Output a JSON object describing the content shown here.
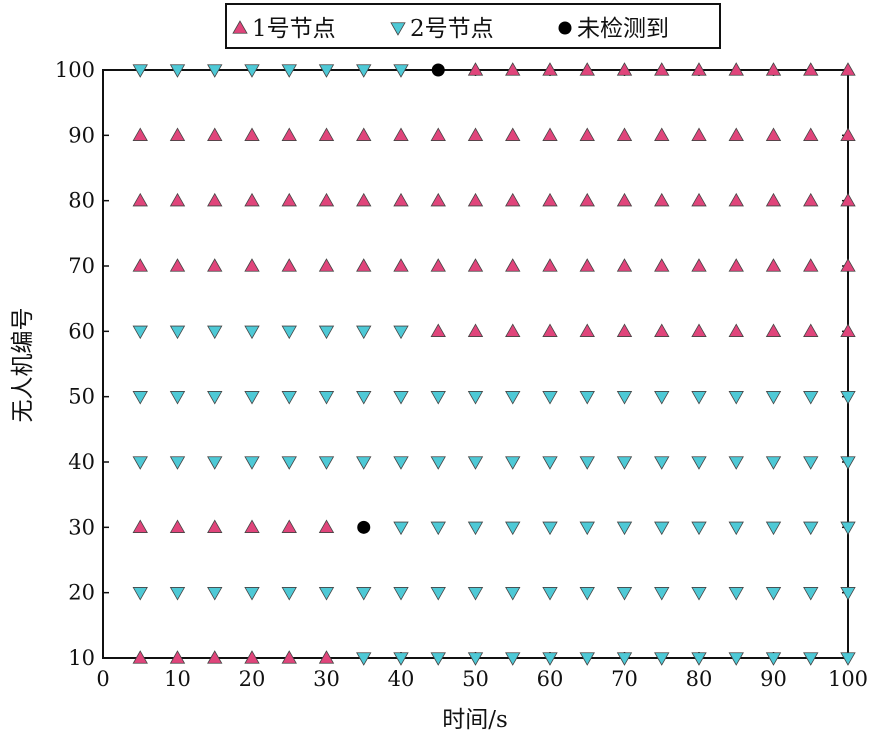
{
  "chart_data": {
    "type": "scatter",
    "title": "",
    "xlabel": "时间/s",
    "ylabel": "无人机编号",
    "xlim": [
      0,
      100
    ],
    "ylim": [
      10,
      100
    ],
    "xticks": [
      0,
      10,
      20,
      30,
      40,
      50,
      60,
      70,
      80,
      90,
      100
    ],
    "yticks": [
      10,
      20,
      30,
      40,
      50,
      60,
      70,
      80,
      90,
      100
    ],
    "grid": false,
    "legend_position": "top",
    "colors": {
      "node1": "#e0457b",
      "node2": "#4ec9d6",
      "undetected": "#000000"
    },
    "time_points": [
      5,
      10,
      15,
      20,
      25,
      30,
      35,
      40,
      45,
      50,
      55,
      60,
      65,
      70,
      75,
      80,
      85,
      90,
      95,
      100
    ],
    "series": [
      {
        "name": "1号节点",
        "marker": "triangle-up",
        "color": "#e0457b",
        "points": [
          [
            5,
            10
          ],
          [
            10,
            10
          ],
          [
            15,
            10
          ],
          [
            20,
            10
          ],
          [
            25,
            10
          ],
          [
            30,
            10
          ],
          [
            5,
            30
          ],
          [
            10,
            30
          ],
          [
            15,
            30
          ],
          [
            20,
            30
          ],
          [
            25,
            30
          ],
          [
            30,
            30
          ],
          [
            45,
            60
          ],
          [
            50,
            60
          ],
          [
            55,
            60
          ],
          [
            60,
            60
          ],
          [
            65,
            60
          ],
          [
            70,
            60
          ],
          [
            75,
            60
          ],
          [
            80,
            60
          ],
          [
            85,
            60
          ],
          [
            90,
            60
          ],
          [
            95,
            60
          ],
          [
            100,
            60
          ],
          [
            5,
            70
          ],
          [
            10,
            70
          ],
          [
            15,
            70
          ],
          [
            20,
            70
          ],
          [
            25,
            70
          ],
          [
            30,
            70
          ],
          [
            35,
            70
          ],
          [
            40,
            70
          ],
          [
            45,
            70
          ],
          [
            50,
            70
          ],
          [
            55,
            70
          ],
          [
            60,
            70
          ],
          [
            65,
            70
          ],
          [
            70,
            70
          ],
          [
            75,
            70
          ],
          [
            80,
            70
          ],
          [
            85,
            70
          ],
          [
            90,
            70
          ],
          [
            95,
            70
          ],
          [
            100,
            70
          ],
          [
            5,
            80
          ],
          [
            10,
            80
          ],
          [
            15,
            80
          ],
          [
            20,
            80
          ],
          [
            25,
            80
          ],
          [
            30,
            80
          ],
          [
            35,
            80
          ],
          [
            40,
            80
          ],
          [
            45,
            80
          ],
          [
            50,
            80
          ],
          [
            55,
            80
          ],
          [
            60,
            80
          ],
          [
            65,
            80
          ],
          [
            70,
            80
          ],
          [
            75,
            80
          ],
          [
            80,
            80
          ],
          [
            85,
            80
          ],
          [
            90,
            80
          ],
          [
            95,
            80
          ],
          [
            100,
            80
          ],
          [
            5,
            90
          ],
          [
            10,
            90
          ],
          [
            15,
            90
          ],
          [
            20,
            90
          ],
          [
            25,
            90
          ],
          [
            30,
            90
          ],
          [
            35,
            90
          ],
          [
            40,
            90
          ],
          [
            45,
            90
          ],
          [
            50,
            90
          ],
          [
            55,
            90
          ],
          [
            60,
            90
          ],
          [
            65,
            90
          ],
          [
            70,
            90
          ],
          [
            75,
            90
          ],
          [
            80,
            90
          ],
          [
            85,
            90
          ],
          [
            90,
            90
          ],
          [
            95,
            90
          ],
          [
            100,
            90
          ],
          [
            50,
            100
          ],
          [
            55,
            100
          ],
          [
            60,
            100
          ],
          [
            65,
            100
          ],
          [
            70,
            100
          ],
          [
            75,
            100
          ],
          [
            80,
            100
          ],
          [
            85,
            100
          ],
          [
            90,
            100
          ],
          [
            95,
            100
          ],
          [
            100,
            100
          ]
        ]
      },
      {
        "name": "2号节点",
        "marker": "triangle-down",
        "color": "#4ec9d6",
        "points": [
          [
            35,
            10
          ],
          [
            40,
            10
          ],
          [
            45,
            10
          ],
          [
            50,
            10
          ],
          [
            55,
            10
          ],
          [
            60,
            10
          ],
          [
            65,
            10
          ],
          [
            70,
            10
          ],
          [
            75,
            10
          ],
          [
            80,
            10
          ],
          [
            85,
            10
          ],
          [
            90,
            10
          ],
          [
            95,
            10
          ],
          [
            100,
            10
          ],
          [
            5,
            20
          ],
          [
            10,
            20
          ],
          [
            15,
            20
          ],
          [
            20,
            20
          ],
          [
            25,
            20
          ],
          [
            30,
            20
          ],
          [
            35,
            20
          ],
          [
            40,
            20
          ],
          [
            45,
            20
          ],
          [
            50,
            20
          ],
          [
            55,
            20
          ],
          [
            60,
            20
          ],
          [
            65,
            20
          ],
          [
            70,
            20
          ],
          [
            75,
            20
          ],
          [
            80,
            20
          ],
          [
            85,
            20
          ],
          [
            90,
            20
          ],
          [
            95,
            20
          ],
          [
            100,
            20
          ],
          [
            40,
            30
          ],
          [
            45,
            30
          ],
          [
            50,
            30
          ],
          [
            55,
            30
          ],
          [
            60,
            30
          ],
          [
            65,
            30
          ],
          [
            70,
            30
          ],
          [
            75,
            30
          ],
          [
            80,
            30
          ],
          [
            85,
            30
          ],
          [
            90,
            30
          ],
          [
            95,
            30
          ],
          [
            100,
            30
          ],
          [
            5,
            40
          ],
          [
            10,
            40
          ],
          [
            15,
            40
          ],
          [
            20,
            40
          ],
          [
            25,
            40
          ],
          [
            30,
            40
          ],
          [
            35,
            40
          ],
          [
            40,
            40
          ],
          [
            45,
            40
          ],
          [
            50,
            40
          ],
          [
            55,
            40
          ],
          [
            60,
            40
          ],
          [
            65,
            40
          ],
          [
            70,
            40
          ],
          [
            75,
            40
          ],
          [
            80,
            40
          ],
          [
            85,
            40
          ],
          [
            90,
            40
          ],
          [
            95,
            40
          ],
          [
            100,
            40
          ],
          [
            5,
            50
          ],
          [
            10,
            50
          ],
          [
            15,
            50
          ],
          [
            20,
            50
          ],
          [
            25,
            50
          ],
          [
            30,
            50
          ],
          [
            35,
            50
          ],
          [
            40,
            50
          ],
          [
            45,
            50
          ],
          [
            50,
            50
          ],
          [
            55,
            50
          ],
          [
            60,
            50
          ],
          [
            65,
            50
          ],
          [
            70,
            50
          ],
          [
            75,
            50
          ],
          [
            80,
            50
          ],
          [
            85,
            50
          ],
          [
            90,
            50
          ],
          [
            95,
            50
          ],
          [
            100,
            50
          ],
          [
            5,
            60
          ],
          [
            10,
            60
          ],
          [
            15,
            60
          ],
          [
            20,
            60
          ],
          [
            25,
            60
          ],
          [
            30,
            60
          ],
          [
            35,
            60
          ],
          [
            40,
            60
          ],
          [
            5,
            100
          ],
          [
            10,
            100
          ],
          [
            15,
            100
          ],
          [
            20,
            100
          ],
          [
            25,
            100
          ],
          [
            30,
            100
          ],
          [
            35,
            100
          ],
          [
            40,
            100
          ]
        ]
      },
      {
        "name": "未检测到",
        "marker": "circle",
        "color": "#000000",
        "points": [
          [
            35,
            30
          ],
          [
            45,
            100
          ]
        ]
      }
    ]
  }
}
